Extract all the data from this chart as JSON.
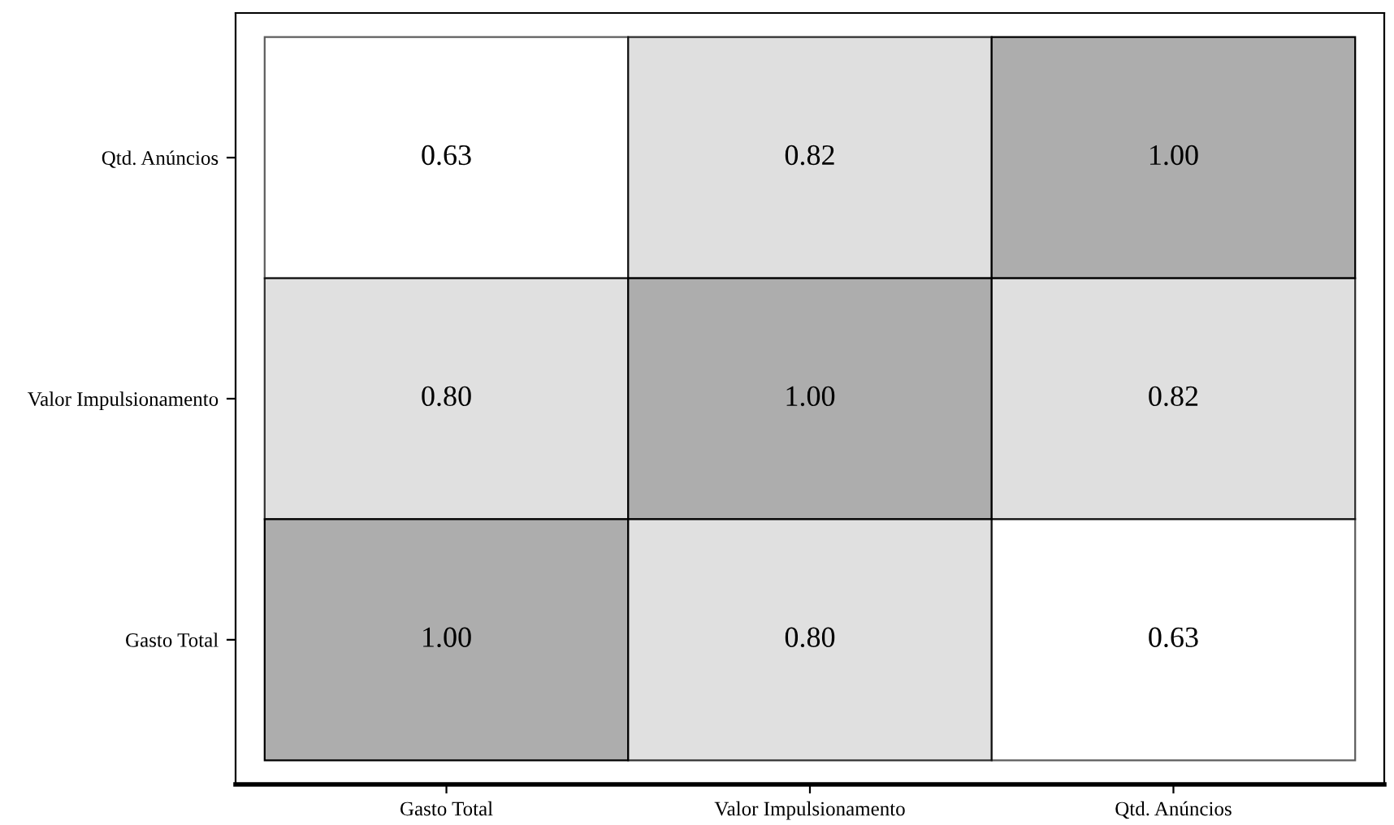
{
  "chart_data": {
    "type": "heatmap",
    "categories": [
      "Gasto Total",
      "Valor Impulsionamento",
      "Qtd. Anúncios"
    ],
    "y_categories": [
      "Qtd. Anúncios",
      "Valor Impulsionamento",
      "Gasto Total"
    ],
    "cells": [
      [
        0.63,
        0.82,
        1.0
      ],
      [
        0.8,
        1.0,
        0.82
      ],
      [
        1.0,
        0.8,
        0.63
      ]
    ],
    "cell_labels": [
      [
        "0.63",
        "0.82",
        "1.00"
      ],
      [
        "0.80",
        "1.00",
        "0.82"
      ],
      [
        "1.00",
        "0.80",
        "0.63"
      ]
    ],
    "colors": [
      [
        "#ffffff",
        "#d9d9d9",
        "#adadad"
      ],
      [
        "#d9d9d9",
        "#adadad",
        "#d9d9d9"
      ],
      [
        "#adadad",
        "#d9d9d9",
        "#ffffff"
      ]
    ],
    "grid": false,
    "legend": false
  }
}
